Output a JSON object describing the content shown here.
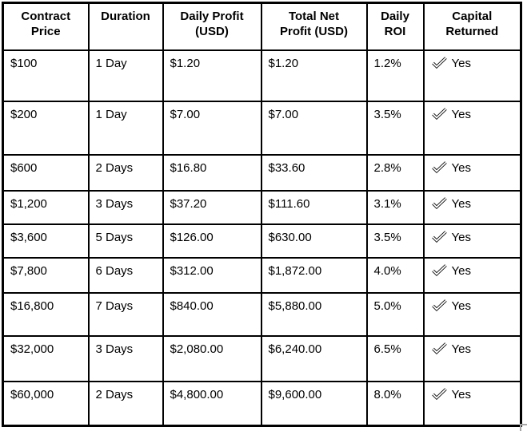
{
  "chart_data": {
    "type": "table",
    "columns": [
      "Contract Price",
      "Duration",
      "Daily Profit (USD)",
      "Total Net Profit (USD)",
      "Daily ROI",
      "Capital Returned"
    ],
    "rows": [
      [
        "$100",
        "1 Day",
        "$1.20",
        "$1.20",
        "1.2%",
        "Yes"
      ],
      [
        "$200",
        "1 Day",
        "$7.00",
        "$7.00",
        "3.5%",
        "Yes"
      ],
      [
        "$600",
        "2 Days",
        "$16.80",
        "$33.60",
        "2.8%",
        "Yes"
      ],
      [
        "$1,200",
        "3 Days",
        "$37.20",
        "$111.60",
        "3.1%",
        "Yes"
      ],
      [
        "$3,600",
        "5 Days",
        "$126.00",
        "$630.00",
        "3.5%",
        "Yes"
      ],
      [
        "$7,800",
        "6 Days",
        "$312.00",
        "$1,872.00",
        "4.0%",
        "Yes"
      ],
      [
        "$16,800",
        "7 Days",
        "$840.00",
        "$5,880.00",
        "5.0%",
        "Yes"
      ],
      [
        "$32,000",
        "3 Days",
        "$2,080.00",
        "$6,240.00",
        "6.5%",
        "Yes"
      ],
      [
        "$60,000",
        "2 Days",
        "$4,800.00",
        "$9,600.00",
        "8.0%",
        "Yes"
      ]
    ]
  },
  "table": {
    "columns": [
      {
        "key": "contract_price",
        "label": "Contract\nPrice"
      },
      {
        "key": "duration",
        "label": "Duration"
      },
      {
        "key": "daily_profit",
        "label": "Daily Profit\n(USD)"
      },
      {
        "key": "total_net_profit",
        "label": "Total Net\nProfit (USD)"
      },
      {
        "key": "daily_roi",
        "label": "Daily\nROI"
      },
      {
        "key": "capital_returned",
        "label": "Capital\nReturned"
      }
    ],
    "rows": [
      {
        "contract_price": "$100",
        "duration": "1 Day",
        "daily_profit": "$1.20",
        "total_net_profit": "$1.20",
        "daily_roi": "1.2%",
        "capital_returned": "Yes"
      },
      {
        "contract_price": "$200",
        "duration": "1 Day",
        "daily_profit": "$7.00",
        "total_net_profit": "$7.00",
        "daily_roi": "3.5%",
        "capital_returned": "Yes"
      },
      {
        "contract_price": "$600",
        "duration": "2 Days",
        "daily_profit": "$16.80",
        "total_net_profit": "$33.60",
        "daily_roi": "2.8%",
        "capital_returned": "Yes"
      },
      {
        "contract_price": "$1,200",
        "duration": "3 Days",
        "daily_profit": "$37.20",
        "total_net_profit": "$111.60",
        "daily_roi": "3.1%",
        "capital_returned": "Yes"
      },
      {
        "contract_price": "$3,600",
        "duration": "5 Days",
        "daily_profit": "$126.00",
        "total_net_profit": "$630.00",
        "daily_roi": "3.5%",
        "capital_returned": "Yes"
      },
      {
        "contract_price": "$7,800",
        "duration": "6 Days",
        "daily_profit": "$312.00",
        "total_net_profit": "$1,872.00",
        "daily_roi": "4.0%",
        "capital_returned": "Yes"
      },
      {
        "contract_price": "$16,800",
        "duration": "7 Days",
        "daily_profit": "$840.00",
        "total_net_profit": "$5,880.00",
        "daily_roi": "5.0%",
        "capital_returned": "Yes"
      },
      {
        "contract_price": "$32,000",
        "duration": "3 Days",
        "daily_profit": "$2,080.00",
        "total_net_profit": "$6,240.00",
        "daily_roi": "6.5%",
        "capital_returned": "Yes"
      },
      {
        "contract_price": "$60,000",
        "duration": "2 Days",
        "daily_profit": "$4,800.00",
        "total_net_profit": "$9,600.00",
        "daily_roi": "8.0%",
        "capital_returned": "Yes"
      }
    ],
    "capital_returned_icon": "check-icon"
  },
  "colors": {
    "table_border": "#000000",
    "text": "#000000",
    "background": "#ffffff",
    "corner_mark": "#a6a6a6"
  }
}
